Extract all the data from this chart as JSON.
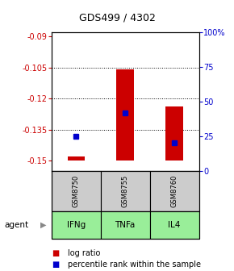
{
  "title": "GDS499 / 4302",
  "samples": [
    "GSM8750",
    "GSM8755",
    "GSM8760"
  ],
  "agents": [
    "IFNg",
    "TNFa",
    "IL4"
  ],
  "bar_base": -0.15,
  "bar_tops": [
    -0.148,
    -0.106,
    -0.124
  ],
  "percentile_values": [
    25,
    42,
    20
  ],
  "ylim_left": [
    -0.155,
    -0.088
  ],
  "yticks_left": [
    -0.15,
    -0.135,
    -0.12,
    -0.105,
    -0.09
  ],
  "ytick_labels_left": [
    "-0.15",
    "-0.135",
    "-0.12",
    "-0.105",
    "-0.09"
  ],
  "ylim_right": [
    0,
    100
  ],
  "yticks_right": [
    0,
    25,
    50,
    75,
    100
  ],
  "ytick_labels_right": [
    "0",
    "25",
    "50",
    "75",
    "100%"
  ],
  "bar_color": "#cc0000",
  "percentile_color": "#0000cc",
  "sample_box_color": "#cccccc",
  "agent_box_color": "#99ee99",
  "legend_log_ratio": "log ratio",
  "legend_percentile": "percentile rank within the sample",
  "agent_label": "agent",
  "background_color": "#ffffff",
  "gridline_yticks": [
    -0.105,
    -0.12,
    -0.135
  ],
  "bar_width": 0.35
}
